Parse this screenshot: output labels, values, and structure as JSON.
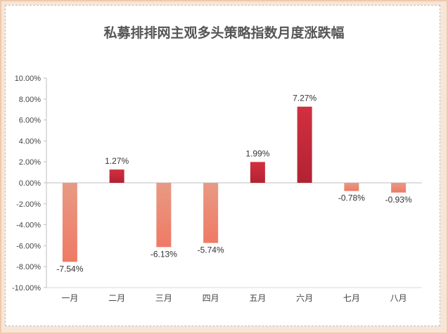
{
  "chart_data": {
    "type": "bar",
    "title": "私募排排网主观多头策略指数月度涨跌幅",
    "categories": [
      "一月",
      "二月",
      "三月",
      "四月",
      "五月",
      "六月",
      "七月",
      "八月"
    ],
    "values": [
      -7.54,
      1.27,
      -6.13,
      -5.74,
      1.99,
      7.27,
      -0.78,
      -0.93
    ],
    "data_labels": [
      "-7.54%",
      "1.27%",
      "-6.13%",
      "-5.74%",
      "1.99%",
      "7.27%",
      "-0.78%",
      "-0.93%"
    ],
    "ylim": [
      -10,
      10
    ],
    "yticks": [
      10,
      8,
      6,
      4,
      2,
      0,
      -2,
      -4,
      -6,
      -8,
      -10
    ],
    "ytick_labels": [
      "10.00%",
      "8.00%",
      "6.00%",
      "4.00%",
      "2.00%",
      "0.00%",
      "-2.00%",
      "-4.00%",
      "-6.00%",
      "-8.00%",
      "-10.00%"
    ],
    "grid": false,
    "colors": {
      "positive": "#c0283a",
      "negative": "#eb8872"
    }
  }
}
